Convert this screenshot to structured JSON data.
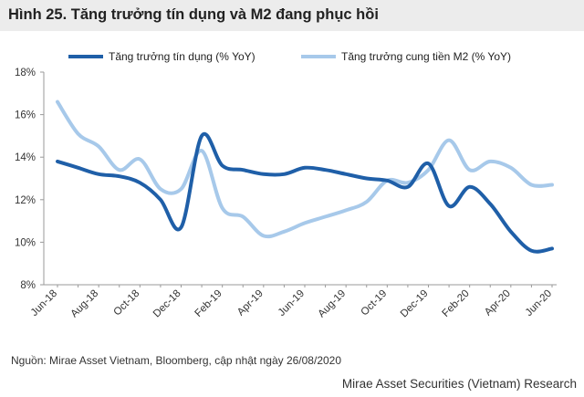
{
  "title": "Hình 25. Tăng trưởng tín dụng và M2 đang phục hồi",
  "source": "Nguồn:  Mirae Asset Vietnam, Bloomberg, cập nhật ngày 26/08/2020",
  "footer": "Mirae Asset Securities (Vietnam) Research",
  "colors": {
    "title_background": "#ececec",
    "credit_series": "#1f5fa8",
    "m2_series": "#a7c9ea",
    "axis": "#9a9a9a"
  },
  "chart_data": {
    "type": "line",
    "x_tick_labels": [
      "Jun-18",
      "Aug-18",
      "Oct-18",
      "Dec-18",
      "Feb-19",
      "Apr-19",
      "Jun-19",
      "Aug-19",
      "Oct-19",
      "Dec-19",
      "Feb-20",
      "Apr-20",
      "Jun-20"
    ],
    "y_tick_labels": [
      "8%",
      "10%",
      "12%",
      "14%",
      "16%",
      "18%"
    ],
    "ylim": [
      8,
      18
    ],
    "y_unit": "%",
    "grid": false,
    "legend_position": "top",
    "x": [
      "Jun-18",
      "Jul-18",
      "Aug-18",
      "Sep-18",
      "Oct-18",
      "Nov-18",
      "Dec-18",
      "Jan-19",
      "Feb-19",
      "Mar-19",
      "Apr-19",
      "May-19",
      "Jun-19",
      "Jul-19",
      "Aug-19",
      "Sep-19",
      "Oct-19",
      "Nov-19",
      "Dec-19",
      "Jan-20",
      "Feb-20",
      "Mar-20",
      "Apr-20",
      "May-20",
      "Jun-20"
    ],
    "series": [
      {
        "name": "Tăng trưởng tín dụng (% YoY)",
        "color": "#1f5fa8",
        "values": [
          13.8,
          13.5,
          13.2,
          13.1,
          12.8,
          12.0,
          10.7,
          15.0,
          13.6,
          13.4,
          13.2,
          13.2,
          13.5,
          13.4,
          13.2,
          13.0,
          12.9,
          12.6,
          13.7,
          11.7,
          12.6,
          11.8,
          10.5,
          9.6,
          9.7
        ]
      },
      {
        "name": "Tăng trưởng cung tiền M2 (% YoY)",
        "color": "#a7c9ea",
        "values": [
          16.6,
          15.1,
          14.5,
          13.4,
          13.9,
          12.5,
          12.5,
          14.3,
          11.6,
          11.2,
          10.3,
          10.5,
          10.9,
          11.2,
          11.5,
          11.9,
          12.9,
          12.8,
          13.4,
          14.8,
          13.4,
          13.8,
          13.5,
          12.7,
          12.7
        ]
      }
    ]
  }
}
